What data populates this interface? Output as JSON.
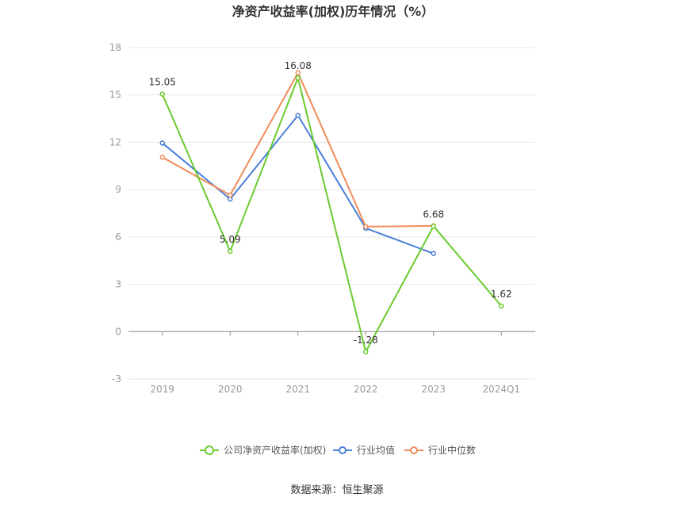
{
  "chart_data": {
    "type": "line",
    "title": "净资产收益率(加权)历年情况（%）",
    "categories": [
      "2019",
      "2020",
      "2021",
      "2022",
      "2023",
      "2024Q1"
    ],
    "y_ticks": [
      "18",
      "15",
      "12",
      "9",
      "6",
      "3",
      "0",
      "-3"
    ],
    "ylim": [
      -3,
      18
    ],
    "grid": true,
    "legend_position": "bottom",
    "series": [
      {
        "name": "公司净资产收益率(加权)",
        "color": "#6ACB2E",
        "values": [
          15.05,
          5.09,
          16.08,
          -1.28,
          6.68,
          1.62
        ],
        "labels": [
          "15.05",
          "5.09",
          "16.08",
          "-1.28",
          "6.68",
          "1.62"
        ]
      },
      {
        "name": "行业均值",
        "color": "#4A7FD9",
        "values": [
          11.95,
          8.4,
          13.7,
          6.55,
          4.95,
          null
        ]
      },
      {
        "name": "行业中位数",
        "color": "#F08C5A",
        "values": [
          11.05,
          8.65,
          16.4,
          6.65,
          6.7,
          null
        ]
      }
    ],
    "source": "数据来源：恒生聚源"
  }
}
